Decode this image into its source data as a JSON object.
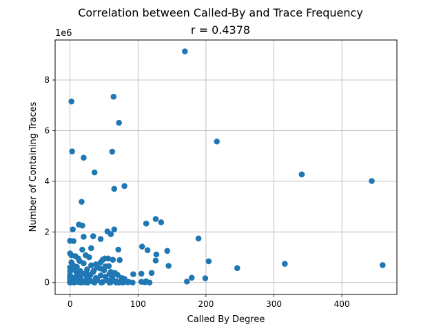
{
  "chart_data": {
    "type": "scatter",
    "title": "Correlation between Called-By and Trace Frequency",
    "subtitle": "r = 0.4378",
    "xlabel": "Called By Degree",
    "ylabel": "Number of Containing Traces",
    "y_offset_label": "1e6",
    "y_scale": 1000000,
    "xlim": [
      -22,
      481
    ],
    "ylim": [
      -470000,
      9580000
    ],
    "xticks": [
      0,
      100,
      200,
      300,
      400
    ],
    "xtick_labels": [
      "0",
      "100",
      "200",
      "300",
      "400"
    ],
    "yticks": [
      0,
      2000000,
      4000000,
      6000000,
      8000000
    ],
    "ytick_labels": [
      "0",
      "2",
      "4",
      "6",
      "8"
    ],
    "grid": true,
    "point_color": "#1f77b4",
    "points": [
      [
        169,
        9130000
      ],
      [
        64,
        7340000
      ],
      [
        2,
        7150000
      ],
      [
        72,
        6310000
      ],
      [
        216,
        5570000
      ],
      [
        3,
        5180000
      ],
      [
        62,
        5170000
      ],
      [
        20,
        4930000
      ],
      [
        36,
        4350000
      ],
      [
        341,
        4270000
      ],
      [
        444,
        4010000
      ],
      [
        80,
        3810000
      ],
      [
        65,
        3700000
      ],
      [
        17,
        3190000
      ],
      [
        126,
        2510000
      ],
      [
        134,
        2380000
      ],
      [
        112,
        2330000
      ],
      [
        13,
        2290000
      ],
      [
        18,
        2250000
      ],
      [
        4,
        2100000
      ],
      [
        65,
        2100000
      ],
      [
        55,
        2020000
      ],
      [
        60,
        1910000
      ],
      [
        20,
        1810000
      ],
      [
        34,
        1830000
      ],
      [
        189,
        1740000
      ],
      [
        45,
        1720000
      ],
      [
        0,
        1650000
      ],
      [
        5,
        1640000
      ],
      [
        106,
        1420000
      ],
      [
        31,
        1360000
      ],
      [
        18,
        1300000
      ],
      [
        71,
        1300000
      ],
      [
        114,
        1280000
      ],
      [
        143,
        1250000
      ],
      [
        0,
        1150000
      ],
      [
        2,
        1080000
      ],
      [
        8,
        1040000
      ],
      [
        127,
        1110000
      ],
      [
        23,
        1080000
      ],
      [
        28,
        1000000
      ],
      [
        51,
        950000
      ],
      [
        56,
        950000
      ],
      [
        48,
        900000
      ],
      [
        63,
        900000
      ],
      [
        73,
        890000
      ],
      [
        126,
        870000
      ],
      [
        204,
        840000
      ],
      [
        14,
        850000
      ],
      [
        45,
        800000
      ],
      [
        316,
        740000
      ],
      [
        460,
        690000
      ],
      [
        145,
        660000
      ],
      [
        31,
        680000
      ],
      [
        57,
        650000
      ],
      [
        246,
        570000
      ],
      [
        0,
        600000
      ],
      [
        10,
        620000
      ],
      [
        40,
        600000
      ],
      [
        0,
        450000
      ],
      [
        6,
        500000
      ],
      [
        15,
        450000
      ],
      [
        25,
        520000
      ],
      [
        35,
        470000
      ],
      [
        50,
        480000
      ],
      [
        60,
        420000
      ],
      [
        66,
        380000
      ],
      [
        120,
        380000
      ],
      [
        105,
        350000
      ],
      [
        93,
        330000
      ],
      [
        70,
        300000
      ],
      [
        20,
        350000
      ],
      [
        30,
        300000
      ],
      [
        45,
        280000
      ],
      [
        0,
        300000
      ],
      [
        10,
        280000
      ],
      [
        0,
        200000
      ],
      [
        5,
        180000
      ],
      [
        15,
        220000
      ],
      [
        25,
        200000
      ],
      [
        38,
        180000
      ],
      [
        52,
        230000
      ],
      [
        62,
        200000
      ],
      [
        76,
        180000
      ],
      [
        80,
        150000
      ],
      [
        179,
        190000
      ],
      [
        199,
        170000
      ],
      [
        0,
        120000
      ],
      [
        8,
        100000
      ],
      [
        18,
        80000
      ],
      [
        28,
        120000
      ],
      [
        40,
        100000
      ],
      [
        55,
        90000
      ],
      [
        68,
        60000
      ],
      [
        86,
        30000
      ],
      [
        0,
        50000
      ],
      [
        4,
        30000
      ],
      [
        12,
        20000
      ],
      [
        22,
        10000
      ],
      [
        33,
        40000
      ],
      [
        48,
        20000
      ],
      [
        60,
        10000
      ],
      [
        72,
        0
      ],
      [
        85,
        10000
      ],
      [
        105,
        30000
      ],
      [
        110,
        10000
      ],
      [
        117,
        0
      ],
      [
        172,
        40000
      ],
      [
        0,
        0
      ],
      [
        6,
        0
      ],
      [
        16,
        0
      ],
      [
        26,
        0
      ],
      [
        36,
        0
      ],
      [
        46,
        0
      ],
      [
        58,
        0
      ],
      [
        68,
        0
      ],
      [
        78,
        0
      ],
      [
        92,
        0
      ],
      [
        112,
        50000
      ],
      [
        2,
        800000
      ],
      [
        4,
        700000
      ],
      [
        12,
        950000
      ],
      [
        20,
        760000
      ],
      [
        38,
        720000
      ],
      [
        44,
        560000
      ],
      [
        52,
        640000
      ],
      [
        24,
        380000
      ],
      [
        34,
        420000
      ],
      [
        10,
        380000
      ],
      [
        58,
        340000
      ]
    ]
  }
}
